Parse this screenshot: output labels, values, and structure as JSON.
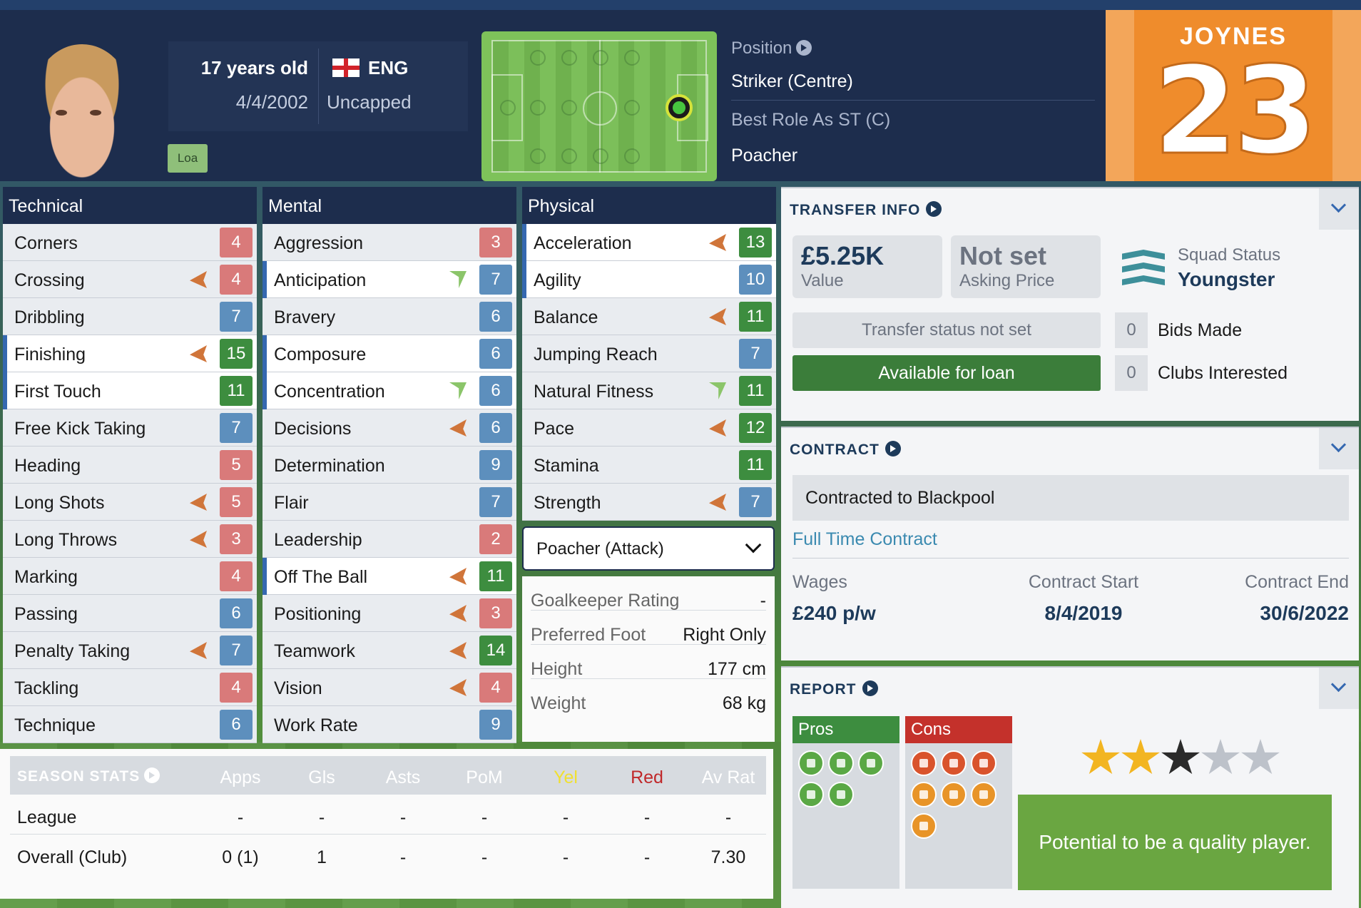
{
  "header": {
    "age": "17 years old",
    "dob": "4/4/2002",
    "nationality": "ENG",
    "caps": "Uncapped",
    "badge": "Loa",
    "position_label": "Position",
    "position": "Striker (Centre)",
    "best_role_label": "Best Role As ST (C)",
    "best_role": "Poacher",
    "shirt_name": "JOYNES",
    "shirt_number": "23"
  },
  "technical": {
    "title": "Technical",
    "rows": [
      {
        "label": "Corners",
        "value": "4",
        "color": "red",
        "trend": ""
      },
      {
        "label": "Crossing",
        "value": "4",
        "color": "red",
        "trend": "down"
      },
      {
        "label": "Dribbling",
        "value": "7",
        "color": "blue",
        "trend": ""
      },
      {
        "label": "Finishing",
        "value": "15",
        "color": "green",
        "trend": "down"
      },
      {
        "label": "First Touch",
        "value": "11",
        "color": "green",
        "trend": ""
      },
      {
        "label": "Free Kick Taking",
        "value": "7",
        "color": "blue",
        "trend": ""
      },
      {
        "label": "Heading",
        "value": "5",
        "color": "red",
        "trend": ""
      },
      {
        "label": "Long Shots",
        "value": "5",
        "color": "red",
        "trend": "down"
      },
      {
        "label": "Long Throws",
        "value": "3",
        "color": "red",
        "trend": "down"
      },
      {
        "label": "Marking",
        "value": "4",
        "color": "red",
        "trend": ""
      },
      {
        "label": "Passing",
        "value": "6",
        "color": "blue",
        "trend": ""
      },
      {
        "label": "Penalty Taking",
        "value": "7",
        "color": "blue",
        "trend": "down"
      },
      {
        "label": "Tackling",
        "value": "4",
        "color": "red",
        "trend": ""
      },
      {
        "label": "Technique",
        "value": "6",
        "color": "blue",
        "trend": ""
      }
    ]
  },
  "mental": {
    "title": "Mental",
    "rows": [
      {
        "label": "Aggression",
        "value": "3",
        "color": "red",
        "trend": ""
      },
      {
        "label": "Anticipation",
        "value": "7",
        "color": "blue",
        "trend": "up"
      },
      {
        "label": "Bravery",
        "value": "6",
        "color": "blue",
        "trend": ""
      },
      {
        "label": "Composure",
        "value": "6",
        "color": "blue",
        "trend": ""
      },
      {
        "label": "Concentration",
        "value": "6",
        "color": "blue",
        "trend": "up"
      },
      {
        "label": "Decisions",
        "value": "6",
        "color": "blue",
        "trend": "down"
      },
      {
        "label": "Determination",
        "value": "9",
        "color": "blue",
        "trend": ""
      },
      {
        "label": "Flair",
        "value": "7",
        "color": "blue",
        "trend": ""
      },
      {
        "label": "Leadership",
        "value": "2",
        "color": "red",
        "trend": ""
      },
      {
        "label": "Off The Ball",
        "value": "11",
        "color": "green",
        "trend": "down"
      },
      {
        "label": "Positioning",
        "value": "3",
        "color": "red",
        "trend": "down"
      },
      {
        "label": "Teamwork",
        "value": "14",
        "color": "green",
        "trend": "down"
      },
      {
        "label": "Vision",
        "value": "4",
        "color": "red",
        "trend": "down"
      },
      {
        "label": "Work Rate",
        "value": "9",
        "color": "blue",
        "trend": ""
      }
    ]
  },
  "physical": {
    "title": "Physical",
    "rows": [
      {
        "label": "Acceleration",
        "value": "13",
        "color": "green",
        "trend": "down"
      },
      {
        "label": "Agility",
        "value": "10",
        "color": "blue",
        "trend": ""
      },
      {
        "label": "Balance",
        "value": "11",
        "color": "green",
        "trend": "down"
      },
      {
        "label": "Jumping Reach",
        "value": "7",
        "color": "blue",
        "trend": ""
      },
      {
        "label": "Natural Fitness",
        "value": "11",
        "color": "green",
        "trend": "up"
      },
      {
        "label": "Pace",
        "value": "12",
        "color": "green",
        "trend": "down"
      },
      {
        "label": "Stamina",
        "value": "11",
        "color": "green",
        "trend": ""
      },
      {
        "label": "Strength",
        "value": "7",
        "color": "blue",
        "trend": "down"
      }
    ],
    "role_select": "Poacher (Attack)",
    "info": [
      {
        "k": "Goalkeeper Rating",
        "v": "-"
      },
      {
        "k": "Preferred Foot",
        "v": "Right Only"
      },
      {
        "k": "Height",
        "v": "177 cm"
      },
      {
        "k": "Weight",
        "v": "68 kg"
      }
    ]
  },
  "season": {
    "title": "SEASON STATS",
    "columns": [
      "Apps",
      "Gls",
      "Asts",
      "PoM",
      "Yel",
      "Red",
      "Av Rat"
    ],
    "rows": [
      {
        "label": "League",
        "cells": [
          "-",
          "-",
          "-",
          "-",
          "-",
          "-",
          "-"
        ]
      },
      {
        "label": "Overall (Club)",
        "cells": [
          "0 (1)",
          "1",
          "-",
          "-",
          "-",
          "-",
          "7.30"
        ]
      }
    ]
  },
  "transfer": {
    "title": "TRANSFER INFO",
    "value": "£5.25K",
    "value_label": "Value",
    "asking": "Not set",
    "asking_label": "Asking Price",
    "squad_label": "Squad Status",
    "squad": "Youngster",
    "status": "Transfer status not set",
    "loan": "Available for loan",
    "bids_count": "0",
    "bids_label": "Bids Made",
    "clubs_count": "0",
    "clubs_label": "Clubs Interested"
  },
  "contract": {
    "title": "CONTRACT",
    "banner": "Contracted to Blackpool",
    "type": "Full Time Contract",
    "wages_label": "Wages",
    "wages": "£240 p/w",
    "start_label": "Contract Start",
    "start": "8/4/2019",
    "end_label": "Contract End",
    "end": "30/6/2022"
  },
  "report": {
    "title": "REPORT",
    "pros": "Pros",
    "cons": "Cons",
    "stars": 2.5,
    "potential": "Potential to be a quality player."
  },
  "colors": {
    "red": "#d97a7a",
    "blue": "#5d8fbd",
    "green": "#3d8d3f",
    "navy": "#1d2d4d"
  }
}
